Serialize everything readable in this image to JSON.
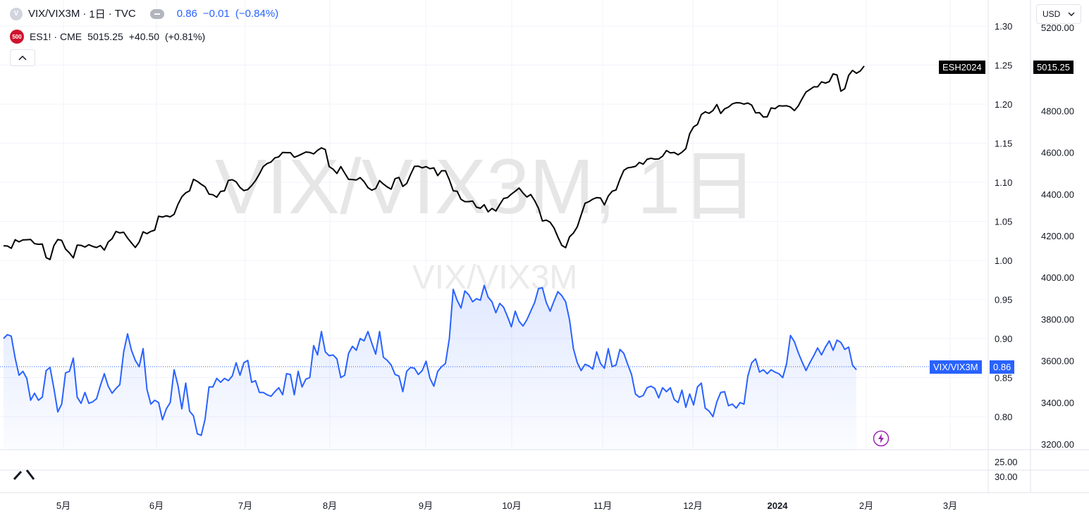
{
  "legend": {
    "main_symbol": "VIX/VIX3M",
    "main_interval": "1日",
    "main_exchange": "TVC",
    "main_value": "0.86",
    "main_change": "−0.01",
    "main_change_pct": "(−0.84%)",
    "main_icon_letter": "V",
    "compare_icon_text": "500",
    "compare_symbol": "ES1!",
    "compare_exchange": "CME",
    "compare_value": "5015.25",
    "compare_change": "+40.50",
    "compare_change_pct": "(+0.81%)",
    "collapse_icon": "chevron-up-icon"
  },
  "currency_selector": {
    "label": "USD",
    "icon": "chevron-down-icon"
  },
  "watermark": {
    "big": "VIX/VIX3M, 1日",
    "small": "VIX/VIX3M"
  },
  "price_tags": {
    "es_label": "ESH2024",
    "es_value": "5015.25",
    "vix_label": "VIX/VIX3M",
    "vix_value": "0.86"
  },
  "colors": {
    "vix_line": "#2962ff",
    "es_line": "#000000",
    "grid": "#f0f3fa",
    "axis_text": "#131722"
  },
  "chart_data": [
    {
      "type": "line",
      "title": "",
      "x_ticks": [
        "5月",
        "6月",
        "7月",
        "8月",
        "9月",
        "10月",
        "11月",
        "12月",
        "2024",
        "2月",
        "3月"
      ],
      "y_left_ticks": [
        "1.30",
        "1.25",
        "1.20",
        "1.15",
        "1.10",
        "1.05",
        "1.00",
        "0.95",
        "0.90",
        "0.85",
        "0.80"
      ],
      "y_right_ticks": [
        "5200.00",
        "4800.00",
        "4600.00",
        "4400.00",
        "4200.00",
        "4000.00",
        "3800.00",
        "3600.00",
        "3400.00",
        "3200.00"
      ],
      "y_left_range": [
        0.779,
        1.316
      ],
      "y_right_range": [
        3100,
        5250
      ],
      "grid": true,
      "series": [
        {
          "name": "VIX/VIX3M",
          "axis": "left",
          "style": "area",
          "values": [
            0.9,
            0.905,
            0.903,
            0.875,
            0.853,
            0.858,
            0.849,
            0.821,
            0.83,
            0.821,
            0.825,
            0.859,
            0.863,
            0.836,
            0.806,
            0.816,
            0.856,
            0.858,
            0.875,
            0.825,
            0.817,
            0.831,
            0.817,
            0.819,
            0.823,
            0.84,
            0.855,
            0.839,
            0.83,
            0.836,
            0.841,
            0.883,
            0.906,
            0.885,
            0.872,
            0.864,
            0.887,
            0.835,
            0.816,
            0.821,
            0.818,
            0.796,
            0.81,
            0.818,
            0.86,
            0.84,
            0.81,
            0.843,
            0.807,
            0.801,
            0.778,
            0.776,
            0.797,
            0.838,
            0.838,
            0.849,
            0.844,
            0.849,
            0.846,
            0.852,
            0.869,
            0.853,
            0.869,
            0.872,
            0.844,
            0.846,
            0.831,
            0.831,
            0.828,
            0.826,
            0.832,
            0.837,
            0.828,
            0.855,
            0.854,
            0.828,
            0.858,
            0.838,
            0.848,
            0.85,
            0.891,
            0.879,
            0.909,
            0.883,
            0.878,
            0.879,
            0.874,
            0.85,
            0.853,
            0.881,
            0.89,
            0.885,
            0.9,
            0.897,
            0.909,
            0.894,
            0.88,
            0.909,
            0.876,
            0.872,
            0.866,
            0.854,
            0.852,
            0.832,
            0.858,
            0.863,
            0.862,
            0.854,
            0.859,
            0.871,
            0.849,
            0.839,
            0.858,
            0.864,
            0.868,
            0.9,
            0.963,
            0.949,
            0.939,
            0.961,
            0.956,
            0.947,
            0.951,
            0.949,
            0.968,
            0.953,
            0.947,
            0.933,
            0.945,
            0.94,
            0.928,
            0.915,
            0.935,
            0.922,
            0.916,
            0.924,
            0.935,
            0.946,
            0.964,
            0.965,
            0.946,
            0.935,
            0.948,
            0.96,
            0.955,
            0.947,
            0.924,
            0.887,
            0.869,
            0.859,
            0.867,
            0.865,
            0.861,
            0.883,
            0.868,
            0.862,
            0.887,
            0.864,
            0.866,
            0.886,
            0.881,
            0.867,
            0.854,
            0.829,
            0.825,
            0.827,
            0.837,
            0.839,
            0.836,
            0.824,
            0.837,
            0.832,
            0.837,
            0.822,
            0.818,
            0.834,
            0.812,
            0.829,
            0.815,
            0.838,
            0.843,
            0.811,
            0.807,
            0.8,
            0.819,
            0.831,
            0.832,
            0.814,
            0.816,
            0.811,
            0.818,
            0.816,
            0.852,
            0.869,
            0.874,
            0.857,
            0.86,
            0.855,
            0.86,
            0.857,
            0.855,
            0.85,
            0.868,
            0.904,
            0.896,
            0.882,
            0.87,
            0.859,
            0.869,
            0.878,
            0.888,
            0.879,
            0.889,
            0.897,
            0.885,
            0.898,
            0.895,
            0.886,
            0.889,
            0.866,
            0.86
          ]
        },
        {
          "name": "ES1!",
          "axis": "right",
          "style": "line",
          "values": [
            4152,
            4151,
            4140,
            4181,
            4171,
            4180,
            4181,
            4182,
            4162,
            4159,
            4160,
            4095,
            4086,
            4153,
            4182,
            4178,
            4136,
            4118,
            4094,
            4155,
            4154,
            4146,
            4157,
            4149,
            4144,
            4153,
            4131,
            4170,
            4186,
            4221,
            4214,
            4217,
            4189,
            4166,
            4144,
            4170,
            4219,
            4210,
            4221,
            4227,
            4294,
            4290,
            4296,
            4291,
            4303,
            4351,
            4387,
            4406,
            4416,
            4471,
            4461,
            4447,
            4435,
            4400,
            4397,
            4385,
            4413,
            4416,
            4466,
            4469,
            4459,
            4432,
            4417,
            4422,
            4441,
            4465,
            4497,
            4532,
            4547,
            4554,
            4574,
            4579,
            4600,
            4599,
            4599,
            4577,
            4584,
            4593,
            4602,
            4600,
            4593,
            4610,
            4622,
            4614,
            4532,
            4520,
            4499,
            4532,
            4501,
            4471,
            4470,
            4468,
            4479,
            4460,
            4431,
            4419,
            4427,
            4465,
            4448,
            4434,
            4424,
            4474,
            4480,
            4437,
            4451,
            4494,
            4533,
            4534,
            4526,
            4532,
            4522,
            4526,
            4489,
            4512,
            4512,
            4469,
            4416,
            4414,
            4375,
            4364,
            4364,
            4367,
            4337,
            4332,
            4349,
            4315,
            4331,
            4319,
            4350,
            4379,
            4383,
            4400,
            4414,
            4429,
            4405,
            4386,
            4398,
            4369,
            4332,
            4271,
            4275,
            4265,
            4238,
            4194,
            4154,
            4143,
            4195,
            4213,
            4243,
            4300,
            4356,
            4364,
            4376,
            4383,
            4381,
            4348,
            4391,
            4414,
            4420,
            4471,
            4514,
            4526,
            4529,
            4533,
            4552,
            4544,
            4567,
            4572,
            4568,
            4569,
            4582,
            4609,
            4598,
            4600,
            4589,
            4601,
            4618,
            4690,
            4723,
            4734,
            4782,
            4795,
            4788,
            4801,
            4830,
            4787,
            4809,
            4818,
            4833,
            4839,
            4838,
            4832,
            4837,
            4827,
            4790,
            4791,
            4770,
            4771,
            4814,
            4810,
            4824,
            4823,
            4824,
            4818,
            4801,
            4823,
            4858,
            4890,
            4902,
            4915,
            4915,
            4939,
            4933,
            4940,
            4977,
            4972,
            4894,
            4906,
            4970,
            4994,
            4980,
            4991,
            5015
          ]
        }
      ]
    },
    {
      "type": "line",
      "title": "",
      "y_ticks": [
        "25.00",
        "30.00"
      ]
    }
  ]
}
